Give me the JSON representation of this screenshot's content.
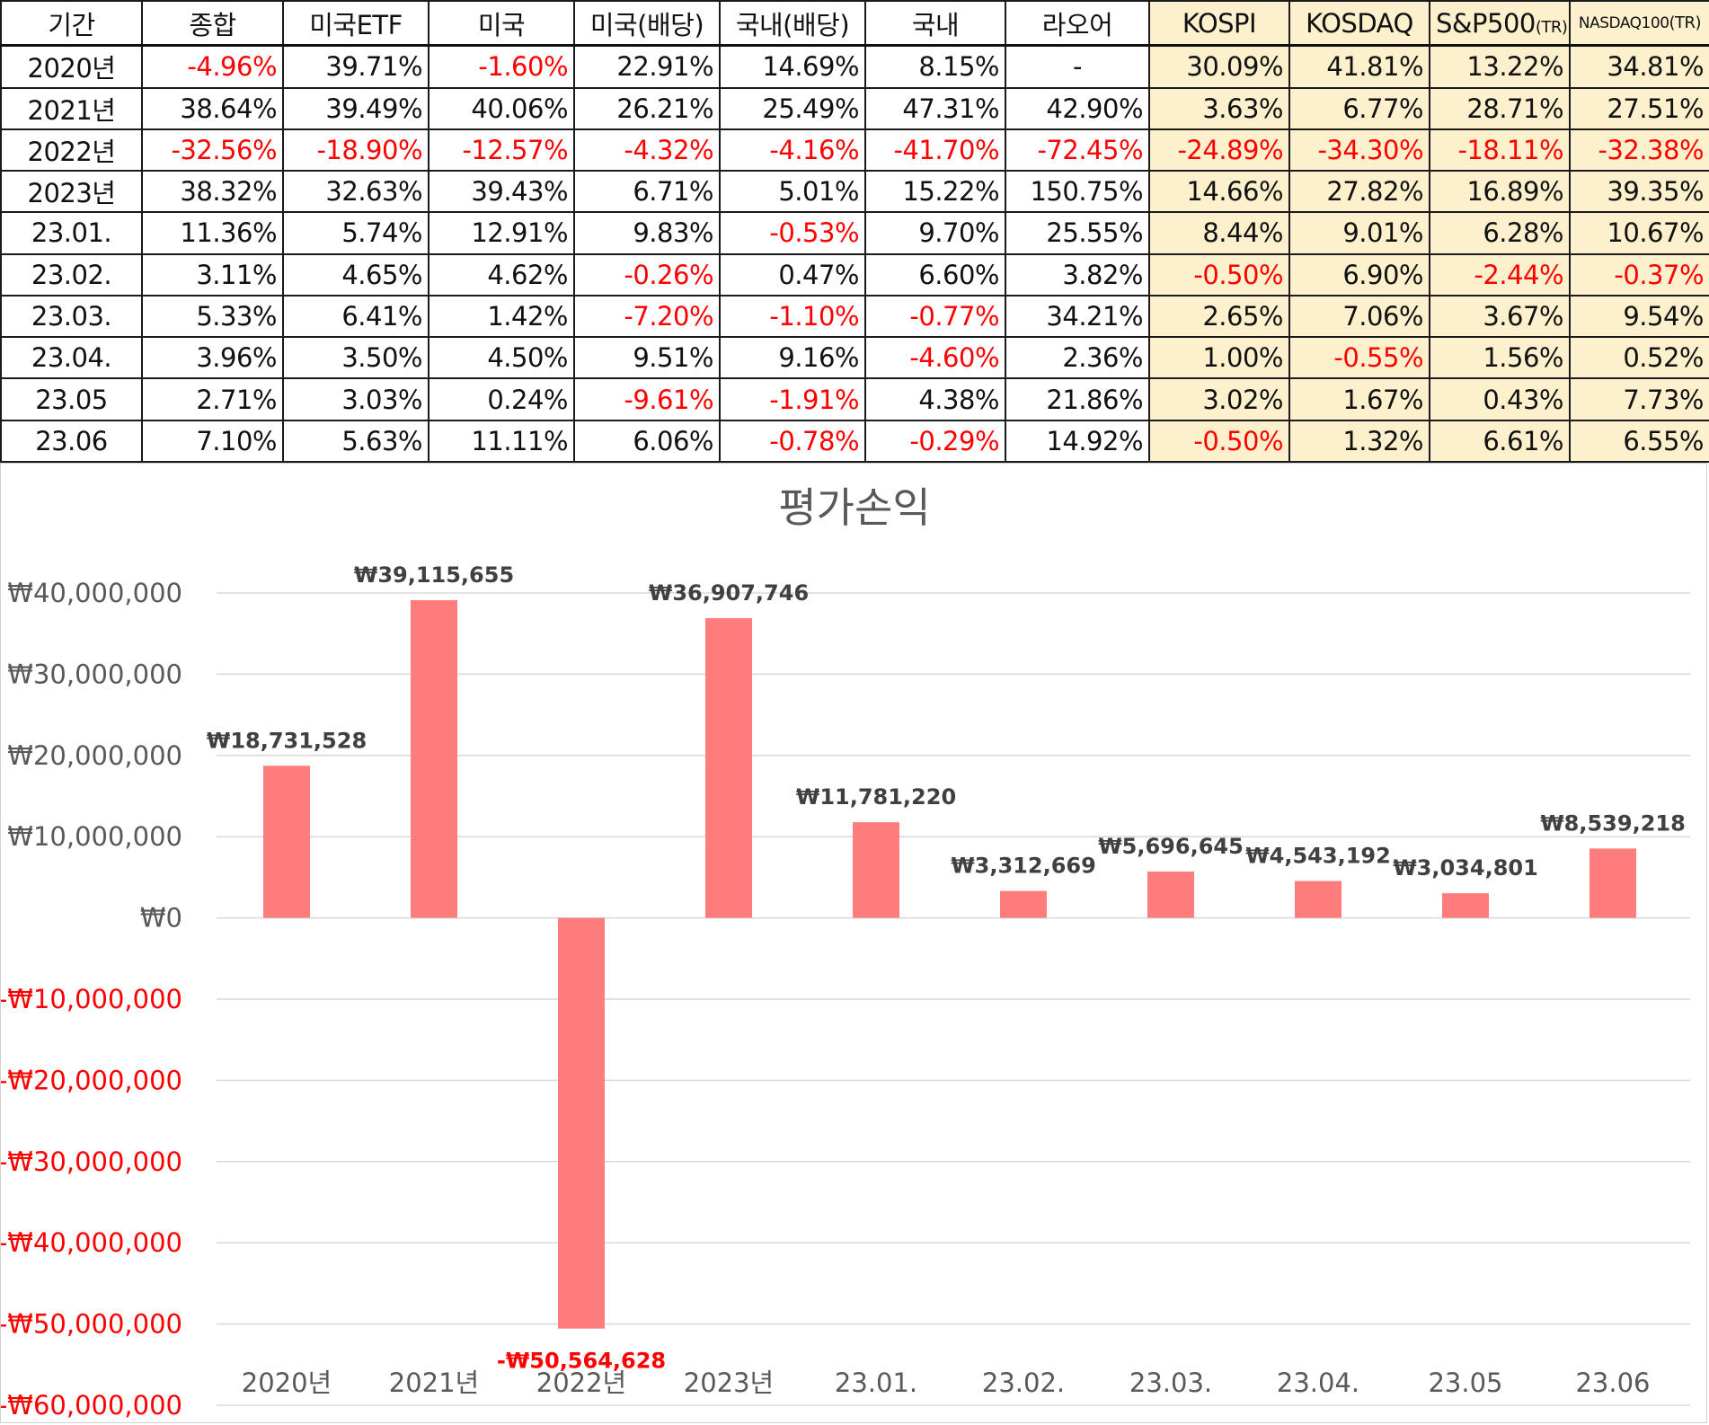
{
  "table": {
    "columns": [
      "기간",
      "종합",
      "미국ETF",
      "미국",
      "미국(배당)",
      "국내(배당)",
      "국내",
      "라오어",
      "KOSPI",
      "KOSDAQ",
      "S&P500",
      "NASDAQ100"
    ],
    "tr_suffix": "(TR)",
    "benchmark_color": "#fdf0cc",
    "negative_color": "#ff0000",
    "rows": [
      [
        "2020년",
        "-4.96%",
        "39.71%",
        "-1.60%",
        "22.91%",
        "14.69%",
        "8.15%",
        "-",
        "30.09%",
        "41.81%",
        "13.22%",
        "34.81%"
      ],
      [
        "2021년",
        "38.64%",
        "39.49%",
        "40.06%",
        "26.21%",
        "25.49%",
        "47.31%",
        "42.90%",
        "3.63%",
        "6.77%",
        "28.71%",
        "27.51%"
      ],
      [
        "2022년",
        "-32.56%",
        "-18.90%",
        "-12.57%",
        "-4.32%",
        "-4.16%",
        "-41.70%",
        "-72.45%",
        "-24.89%",
        "-34.30%",
        "-18.11%",
        "-32.38%"
      ],
      [
        "2023년",
        "38.32%",
        "32.63%",
        "39.43%",
        "6.71%",
        "5.01%",
        "15.22%",
        "150.75%",
        "14.66%",
        "27.82%",
        "16.89%",
        "39.35%"
      ],
      [
        "23.01.",
        "11.36%",
        "5.74%",
        "12.91%",
        "9.83%",
        "-0.53%",
        "9.70%",
        "25.55%",
        "8.44%",
        "9.01%",
        "6.28%",
        "10.67%"
      ],
      [
        "23.02.",
        "3.11%",
        "4.65%",
        "4.62%",
        "-0.26%",
        "0.47%",
        "6.60%",
        "3.82%",
        "-0.50%",
        "6.90%",
        "-2.44%",
        "-0.37%"
      ],
      [
        "23.03.",
        "5.33%",
        "6.41%",
        "1.42%",
        "-7.20%",
        "-1.10%",
        "-0.77%",
        "34.21%",
        "2.65%",
        "7.06%",
        "3.67%",
        "9.54%"
      ],
      [
        "23.04.",
        "3.96%",
        "3.50%",
        "4.50%",
        "9.51%",
        "9.16%",
        "-4.60%",
        "2.36%",
        "1.00%",
        "-0.55%",
        "1.56%",
        "0.52%"
      ],
      [
        "23.05",
        "2.71%",
        "3.03%",
        "0.24%",
        "-9.61%",
        "-1.91%",
        "4.38%",
        "21.86%",
        "3.02%",
        "1.67%",
        "0.43%",
        "7.73%"
      ],
      [
        "23.06",
        "7.10%",
        "5.63%",
        "11.11%",
        "6.06%",
        "-0.78%",
        "-0.29%",
        "14.92%",
        "-0.50%",
        "1.32%",
        "6.61%",
        "6.55%"
      ]
    ]
  },
  "chart_data": {
    "type": "bar",
    "title": "평가손익",
    "categories": [
      "2020년",
      "2021년",
      "2022년",
      "2023년",
      "23.01.",
      "23.02.",
      "23.03.",
      "23.04.",
      "23.05",
      "23.06"
    ],
    "values": [
      18731528,
      39115655,
      -50564628,
      36907746,
      11781220,
      3312669,
      5696645,
      4543192,
      3034801,
      8539218
    ],
    "data_labels": [
      "₩18,731,528",
      "₩39,115,655",
      "-₩50,564,628",
      "₩36,907,746",
      "₩11,781,220",
      "₩3,312,669",
      "₩5,696,645",
      "₩4,543,192",
      "₩3,034,801",
      "₩8,539,218"
    ],
    "yticks": [
      40000000,
      30000000,
      20000000,
      10000000,
      0,
      -10000000,
      -20000000,
      -30000000,
      -40000000,
      -50000000,
      -60000000
    ],
    "ytick_labels": [
      "₩40,000,000",
      "₩30,000,000",
      "₩20,000,000",
      "₩10,000,000",
      "₩0",
      "-₩10,000,000",
      "-₩20,000,000",
      "-₩30,000,000",
      "-₩40,000,000",
      "-₩50,000,000",
      "-₩60,000,000"
    ],
    "ylim": [
      -60000000,
      40000000
    ],
    "grid": true,
    "legend": "none",
    "bar_color": "#ff7c7c",
    "negative_label_color": "#ff0000"
  }
}
